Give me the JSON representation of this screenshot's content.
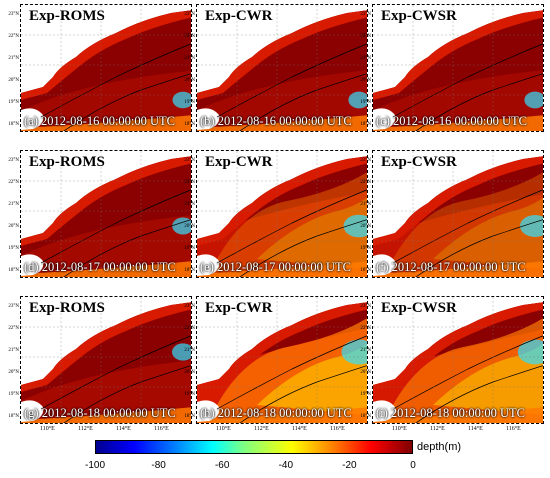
{
  "figure": {
    "panels": [
      {
        "title": "Exp-ROMS",
        "caption": "(a) 2012-08-16 00:00:00 UTC",
        "shallow_fraction": 0.05
      },
      {
        "title": "Exp-CWR",
        "caption": "(b) 2012-08-16 00:00:00 UTC",
        "shallow_fraction": 0.06
      },
      {
        "title": "Exp-CWSR",
        "caption": "(c) 2012-08-16 00:00:00 UTC",
        "shallow_fraction": 0.06
      },
      {
        "title": "Exp-ROMS",
        "caption": "(d) 2012-08-17 00:00:00 UTC",
        "shallow_fraction": 0.08
      },
      {
        "title": "Exp-CWR",
        "caption": "(e) 2012-08-17 00:00:00 UTC",
        "shallow_fraction": 0.55
      },
      {
        "title": "Exp-CWSR",
        "caption": "(f) 2012-08-17 00:00:00 UTC",
        "shallow_fraction": 0.5
      },
      {
        "title": "Exp-ROMS",
        "caption": "(g) 2012-08-18 00:00:00 UTC",
        "shallow_fraction": 0.1
      },
      {
        "title": "Exp-CWR",
        "caption": "(h) 2012-08-18 00:00:00 UTC",
        "shallow_fraction": 0.75
      },
      {
        "title": "Exp-CWSR",
        "caption": "(i) 2012-08-18 00:00:00 UTC",
        "shallow_fraction": 0.72
      }
    ],
    "latitude_ticks": [
      "23°N",
      "22°N",
      "21°N",
      "20°N",
      "19°N",
      "18°N"
    ],
    "longitude_ticks": [
      "110°E",
      "112°E",
      "114°E",
      "116°E"
    ],
    "colorbar": {
      "ticks": [
        "-100",
        "-80",
        "-60",
        "-40",
        "-20",
        "0"
      ],
      "label": "depth(m)",
      "range": [
        -100,
        0
      ]
    },
    "colors": {
      "deep_dark_red": "#8b0000",
      "red": "#d71a00",
      "orange": "#ff7a00",
      "yellow": "#ffd000",
      "cyan": "#30e0ff",
      "land": "#ffffff"
    }
  }
}
